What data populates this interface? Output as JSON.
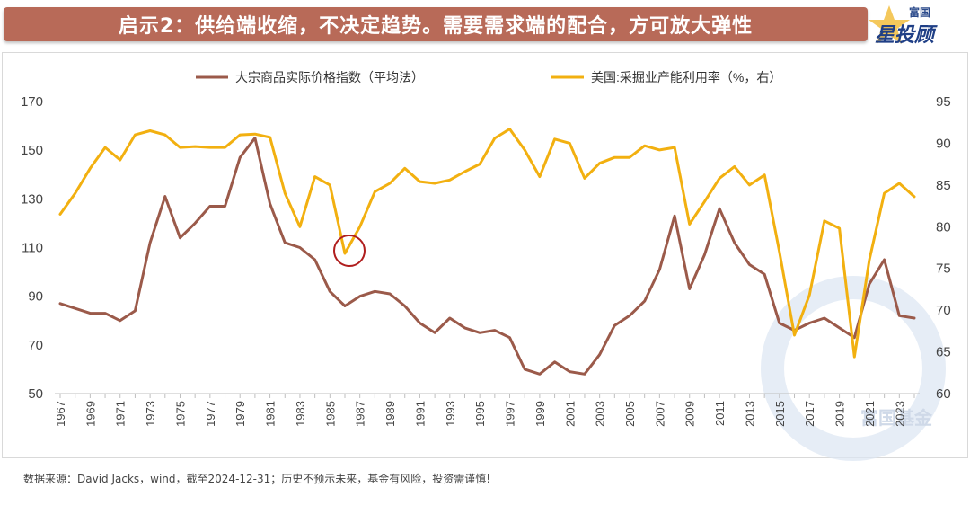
{
  "header": {
    "title": "启示2：供给端收缩，不决定趋势。需要需求端的配合，方可放大弹性",
    "logo_top": "富国",
    "logo_main": "星投顾"
  },
  "footer": {
    "source": "数据来源：David Jacks，wind，截至2024-12-31；历史不预示未来，基金有风险，投资需谨慎!"
  },
  "watermark": "富国基金",
  "colors": {
    "title_bg": "#b86a58",
    "series_commodity": "#9b5a4a",
    "series_capacity": "#f2b010",
    "highlight_circle": "#b01e1e"
  },
  "chart_data": {
    "type": "line",
    "x": [
      1967,
      1968,
      1969,
      1970,
      1971,
      1972,
      1973,
      1974,
      1975,
      1976,
      1977,
      1978,
      1979,
      1980,
      1981,
      1982,
      1983,
      1984,
      1985,
      1986,
      1987,
      1988,
      1989,
      1990,
      1991,
      1992,
      1993,
      1994,
      1995,
      1996,
      1997,
      1998,
      1999,
      2000,
      2001,
      2002,
      2003,
      2004,
      2005,
      2006,
      2007,
      2008,
      2009,
      2010,
      2011,
      2012,
      2013,
      2014,
      2015,
      2016,
      2017,
      2018,
      2019,
      2020,
      2021,
      2022,
      2023,
      2024
    ],
    "x_tick_labels": [
      "1967",
      "1969",
      "1971",
      "1973",
      "1975",
      "1977",
      "1979",
      "1981",
      "1983",
      "1985",
      "1987",
      "1989",
      "1991",
      "1993",
      "1995",
      "1997",
      "1999",
      "2001",
      "2003",
      "2005",
      "2007",
      "2009",
      "2011",
      "2013",
      "2015",
      "2017",
      "2019",
      "2021",
      "2023"
    ],
    "legend_position": "top",
    "grid": false,
    "y_left": {
      "ticks": [
        50,
        70,
        90,
        110,
        130,
        150,
        170
      ],
      "range": [
        50,
        170
      ]
    },
    "y_right": {
      "ticks": [
        60,
        65,
        70,
        75,
        80,
        85,
        90,
        95
      ],
      "range": [
        60,
        95
      ]
    },
    "series": [
      {
        "name": "大宗商品实际价格指数（平均法）",
        "axis": "left",
        "color": "#9b5a4a",
        "values": [
          87,
          85,
          83,
          83,
          80,
          84,
          112,
          131,
          114,
          120,
          127,
          127,
          147,
          155,
          128,
          112,
          110,
          105,
          92,
          86,
          90,
          92,
          91,
          86,
          79,
          75,
          81,
          77,
          75,
          76,
          73,
          60,
          58,
          63,
          59,
          58,
          66,
          78,
          82,
          88,
          101,
          123,
          93,
          107,
          126,
          112,
          103,
          99,
          79,
          76,
          79,
          81,
          77,
          73,
          95,
          105,
          82,
          81
        ]
      },
      {
        "name": "美国:采掘业产能利用率（%，右）",
        "axis": "right",
        "color": "#f2b010",
        "values": [
          81.5,
          84,
          87,
          89.5,
          88,
          91,
          91.5,
          91,
          89.5,
          89.6,
          89.5,
          89.5,
          91,
          91.1,
          90.7,
          84,
          80,
          86,
          85,
          76.8,
          80,
          84.2,
          85.2,
          87,
          85.4,
          85.2,
          85.6,
          86.6,
          87.5,
          90.6,
          91.7,
          89.2,
          86,
          90.5,
          90,
          85.8,
          87.6,
          88.3,
          88.3,
          89.7,
          89.2,
          89.5,
          80.3,
          83,
          85.8,
          87.2,
          85,
          86.2,
          77,
          67,
          71.8,
          80.7,
          79.8,
          64.4,
          76,
          84,
          85.2,
          83.6
        ]
      }
    ],
    "annotations": [
      {
        "type": "circle",
        "x": 1986,
        "axis": "right",
        "y": 76.8,
        "color": "#b01e1e"
      }
    ]
  }
}
